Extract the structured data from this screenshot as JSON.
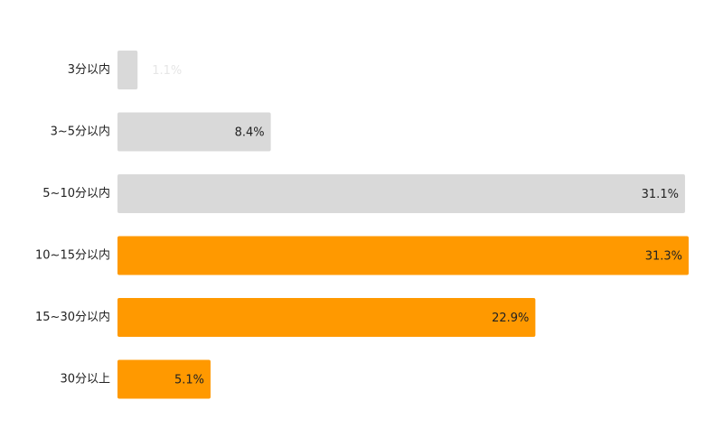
{
  "chart_data": {
    "type": "bar",
    "orientation": "horizontal",
    "categories": [
      "3分以内",
      "3~5分以内",
      "5~10分以内",
      "10~15分以内",
      "15~30分以内",
      "30分以上"
    ],
    "values": [
      1.1,
      8.4,
      31.1,
      31.3,
      22.9,
      5.1
    ],
    "value_labels": [
      "1.1%",
      "8.4%",
      "31.1%",
      "31.3%",
      "22.9%",
      "5.1%"
    ],
    "xlim": [
      0,
      31.3
    ],
    "grid": false,
    "legend": "none",
    "highlighted": [
      false,
      false,
      false,
      true,
      true,
      true
    ]
  },
  "colors": {
    "default_bar": "#d9d9d9",
    "highlight_bar": "#ff9900",
    "faint_label": "#e6e6e6",
    "label": "#222222"
  }
}
